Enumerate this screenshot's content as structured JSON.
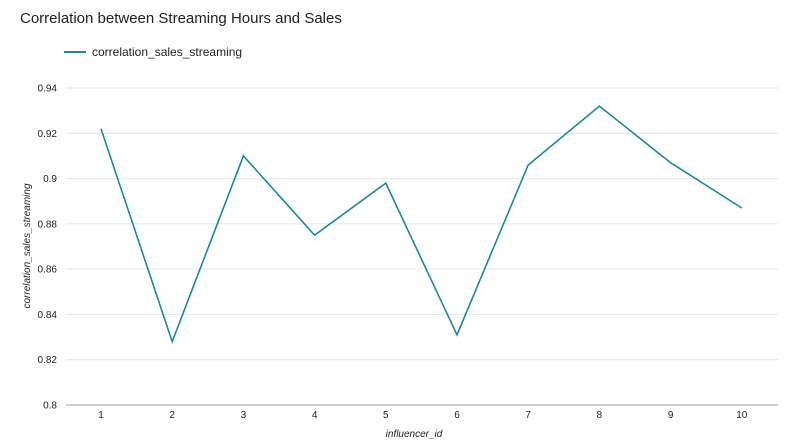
{
  "chart_data": {
    "type": "line",
    "title": "Correlation between Streaming Hours and Sales",
    "xlabel": "influencer_id",
    "ylabel": "correlation_sales_streaming",
    "x": [
      1,
      2,
      3,
      4,
      5,
      6,
      7,
      8,
      9,
      10
    ],
    "series": [
      {
        "name": "correlation_sales_streaming",
        "color": "#1a8a99",
        "values": [
          0.922,
          0.828,
          0.91,
          0.875,
          0.898,
          0.831,
          0.906,
          0.932,
          0.907,
          0.887
        ]
      }
    ],
    "ylim": [
      0.8,
      0.94
    ],
    "yticks": [
      "0.8",
      "0.82",
      "0.84",
      "0.86",
      "0.88",
      "0.9",
      "0.92",
      "0.94"
    ],
    "ytick_values": [
      0.8,
      0.82,
      0.84,
      0.86,
      0.88,
      0.9,
      0.92,
      0.94
    ],
    "xticks": [
      "1",
      "2",
      "3",
      "4",
      "5",
      "6",
      "7",
      "8",
      "9",
      "10"
    ],
    "grid": true,
    "legend_position": "top-left"
  }
}
